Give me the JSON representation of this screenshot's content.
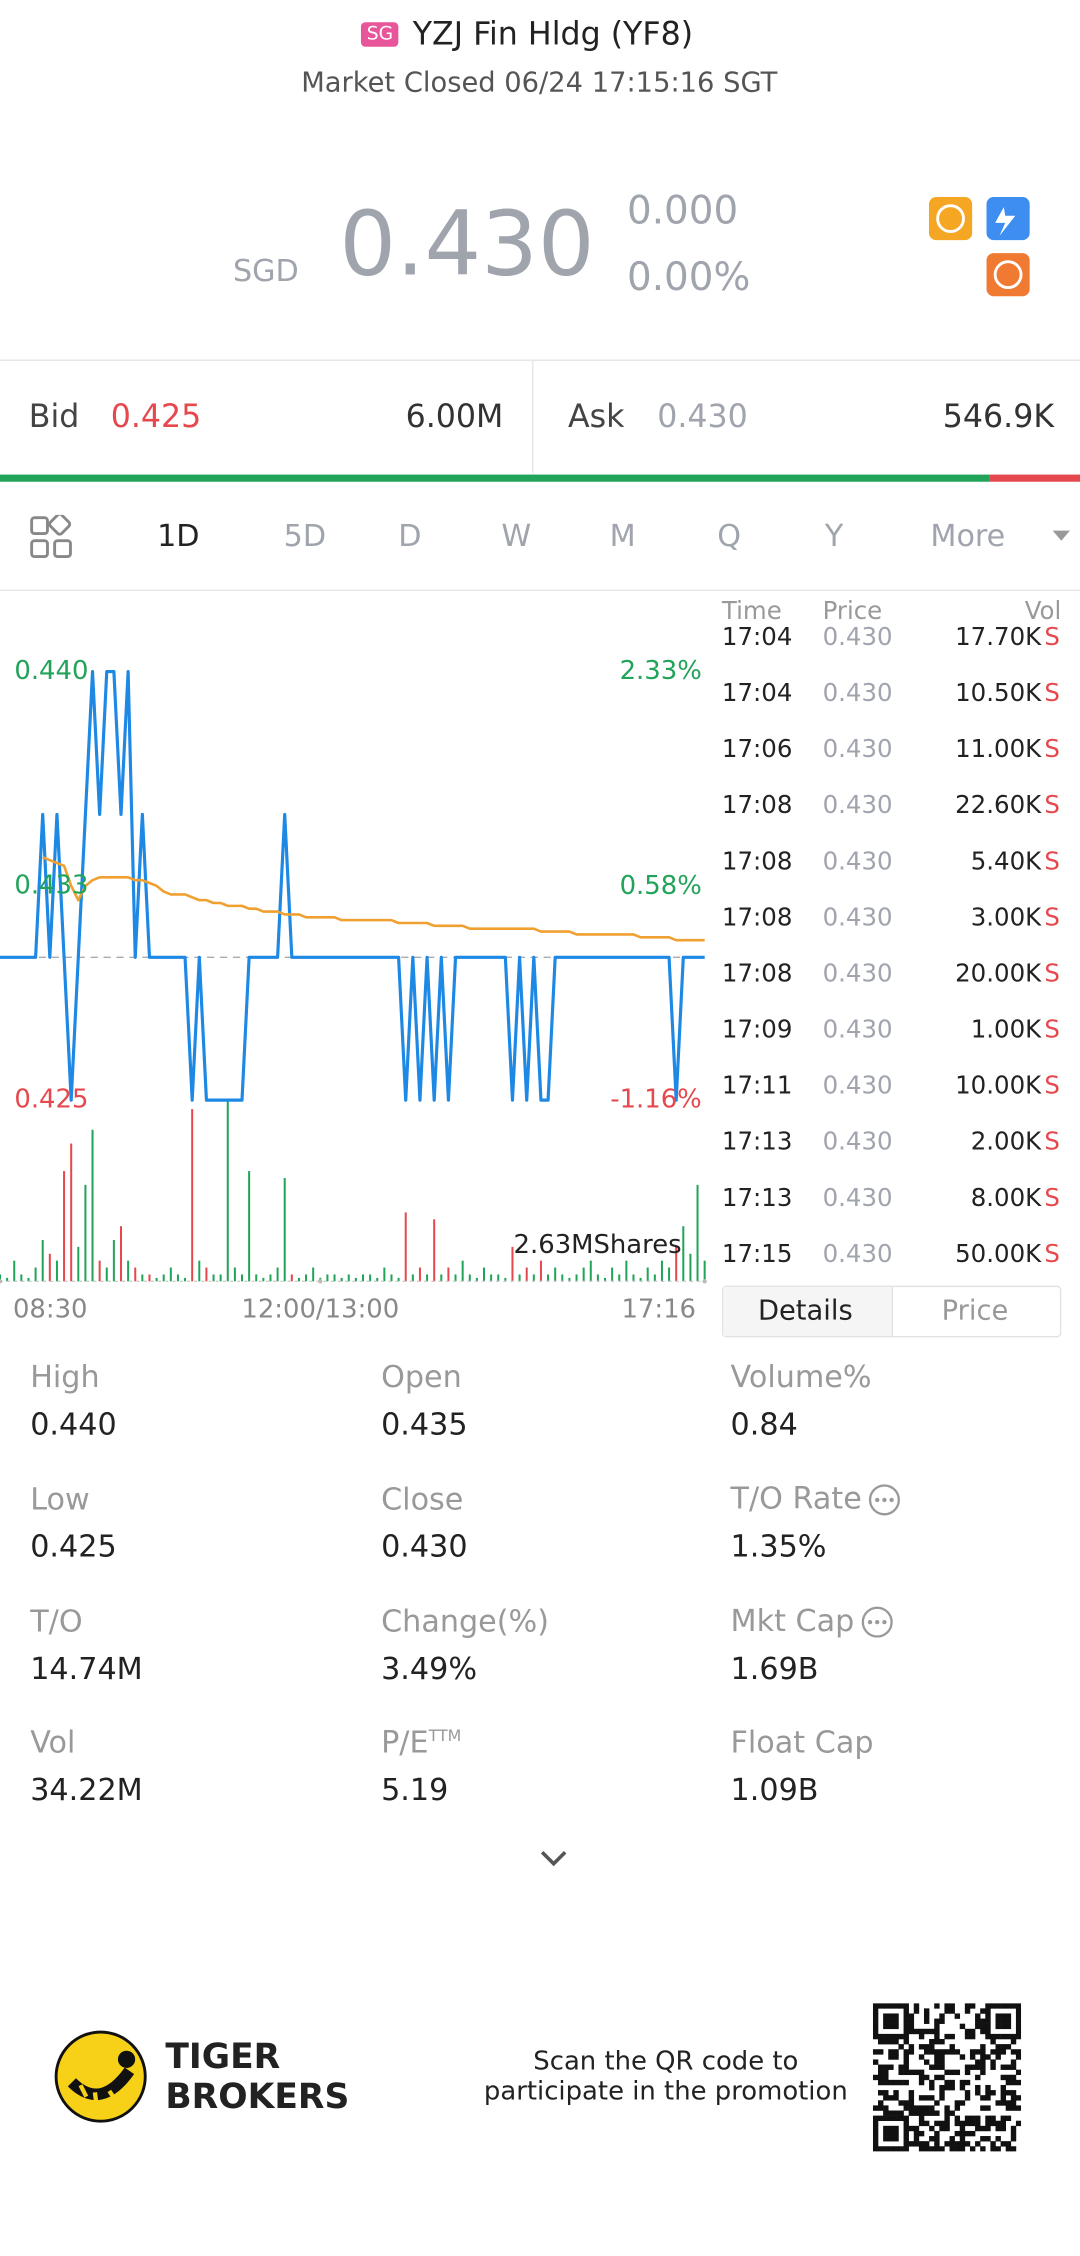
{
  "header": {
    "badge": "SG",
    "title": "YZJ Fin Hldg (YF8)",
    "status": "Market Closed 06/24 17:15:16 SGT"
  },
  "quote": {
    "currency": "SGD",
    "price": "0.430",
    "change": "0.000",
    "change_pct": "0.00%"
  },
  "bid_ask": {
    "bid_label": "Bid",
    "bid": "0.425",
    "bid_size": "6.00M",
    "ask_label": "Ask",
    "ask": "0.430",
    "ask_size": "546.9K"
  },
  "tabs": [
    "1D",
    "5D",
    "D",
    "W",
    "M",
    "Q",
    "Y",
    "More"
  ],
  "chart": {
    "type": "line",
    "ylim": [
      0.425,
      0.44
    ],
    "yticks": [
      {
        "value": 0.44,
        "label": "0.440"
      },
      {
        "value": 0.4325,
        "label": "0.433"
      },
      {
        "value": 0.425,
        "label": "0.425"
      }
    ],
    "y2lim": [
      -1.16,
      2.33
    ],
    "y2ticks": [
      {
        "value": 2.33,
        "label": "2.33%"
      },
      {
        "value": 0.58,
        "label": "0.58%"
      },
      {
        "value": -1.16,
        "label": "-1.16%"
      }
    ],
    "xlim": [
      0,
      99
    ],
    "xticks": [
      {
        "value": 0,
        "label": "08:30"
      },
      {
        "value": 45,
        "label": "12:00/13:00"
      },
      {
        "value": 99,
        "label": "17:16"
      }
    ],
    "reference": 0.43,
    "series": [
      {
        "color": "#1e88e5",
        "values": [
          0.43,
          0.43,
          0.43,
          0.43,
          0.43,
          0.43,
          0.435,
          0.43,
          0.435,
          0.43,
          0.425,
          0.43,
          0.435,
          0.44,
          0.435,
          0.44,
          0.44,
          0.435,
          0.44,
          0.43,
          0.435,
          0.43,
          0.43,
          0.43,
          0.43,
          0.43,
          0.43,
          0.425,
          0.43,
          0.425,
          0.425,
          0.425,
          0.425,
          0.425,
          0.425,
          0.43,
          0.43,
          0.43,
          0.43,
          0.43,
          0.435,
          0.43,
          0.43,
          0.43,
          0.43,
          0.43,
          0.43,
          0.43,
          0.43,
          0.43,
          0.43,
          0.43,
          0.43,
          0.43,
          0.43,
          0.43,
          0.43,
          0.425,
          0.43,
          0.425,
          0.43,
          0.425,
          0.43,
          0.425,
          0.43,
          0.43,
          0.43,
          0.43,
          0.43,
          0.43,
          0.43,
          0.43,
          0.425,
          0.43,
          0.425,
          0.43,
          0.425,
          0.425,
          0.43,
          0.43,
          0.43,
          0.43,
          0.43,
          0.43,
          0.43,
          0.43,
          0.43,
          0.43,
          0.43,
          0.43,
          0.43,
          0.43,
          0.43,
          0.43,
          0.43,
          0.425,
          0.43,
          0.43,
          0.43,
          0.43
        ]
      },
      {
        "color": "#f0a030",
        "values": [
          null,
          null,
          null,
          null,
          null,
          null,
          0.4335,
          0.4334,
          0.4333,
          0.4332,
          0.4325,
          0.432,
          0.4325,
          0.4327,
          0.4328,
          0.4328,
          0.4328,
          0.4328,
          0.4328,
          0.4327,
          0.4327,
          0.4326,
          0.4325,
          0.4323,
          0.4322,
          0.4322,
          0.4322,
          0.4321,
          0.432,
          0.432,
          0.4319,
          0.4319,
          0.4318,
          0.4318,
          0.4318,
          0.4317,
          0.4317,
          0.4316,
          0.4316,
          0.4316,
          0.4315,
          0.4315,
          0.4315,
          0.4314,
          0.4314,
          0.4314,
          0.4314,
          0.4314,
          0.4313,
          0.4313,
          0.4313,
          0.4313,
          0.4313,
          0.4313,
          0.4313,
          0.4313,
          0.4312,
          0.4312,
          0.4312,
          0.4312,
          0.4312,
          0.4311,
          0.4311,
          0.4311,
          0.4311,
          0.4311,
          0.431,
          0.431,
          0.431,
          0.431,
          0.431,
          0.431,
          0.431,
          0.431,
          0.431,
          0.431,
          0.4309,
          0.4309,
          0.4309,
          0.4309,
          0.4309,
          0.4308,
          0.4308,
          0.4308,
          0.4308,
          0.4308,
          0.4308,
          0.4308,
          0.4308,
          0.4308,
          0.4307,
          0.4307,
          0.4307,
          0.4307,
          0.4307,
          0.4306,
          0.4306,
          0.4306,
          0.4306,
          0.4306
        ]
      }
    ],
    "volume": {
      "ylim": [
        0,
        2.63
      ],
      "yticks": [
        {
          "value": 2.63,
          "label": "2.63MShares"
        }
      ],
      "up_color": "#22a35a",
      "down_color": "#e5484d",
      "values": [
        0.1,
        0.05,
        0.3,
        0.1,
        0.05,
        0.2,
        0.6,
        0.4,
        0.3,
        1.6,
        2.0,
        0.5,
        1.4,
        2.2,
        0.3,
        0.2,
        0.6,
        0.8,
        0.3,
        0.2,
        0.1,
        0.1,
        0.05,
        0.1,
        0.2,
        0.1,
        0.05,
        2.5,
        0.3,
        0.2,
        0.1,
        0.1,
        2.63,
        0.2,
        0.1,
        1.6,
        0.1,
        0.05,
        0.1,
        0.2,
        1.5,
        0.1,
        0.05,
        0.1,
        0.2,
        0.05,
        0.1,
        0.1,
        0.05,
        0.1,
        0.05,
        0.1,
        0.1,
        0.05,
        0.2,
        0.1,
        0.05,
        1.0,
        0.1,
        0.2,
        0.1,
        0.9,
        0.1,
        0.2,
        0.1,
        0.3,
        0.1,
        0.05,
        0.2,
        0.1,
        0.1,
        0.05,
        0.5,
        0.1,
        0.2,
        0.1,
        0.3,
        0.1,
        0.2,
        0.1,
        0.05,
        0.1,
        0.2,
        0.3,
        0.1,
        0.05,
        0.2,
        0.1,
        0.3,
        0.1,
        0.05,
        0.2,
        0.1,
        0.3,
        0.2,
        0.5,
        0.8,
        0.4,
        1.4,
        0.3
      ]
    }
  },
  "trades": {
    "columns": [
      "Time",
      "Price",
      "Vol"
    ],
    "rows": [
      [
        "17:04",
        "0.430",
        "17.70K",
        "S"
      ],
      [
        "17:04",
        "0.430",
        "10.50K",
        "S"
      ],
      [
        "17:06",
        "0.430",
        "11.00K",
        "S"
      ],
      [
        "17:08",
        "0.430",
        "22.60K",
        "S"
      ],
      [
        "17:08",
        "0.430",
        "5.40K",
        "S"
      ],
      [
        "17:08",
        "0.430",
        "3.00K",
        "S"
      ],
      [
        "17:08",
        "0.430",
        "20.00K",
        "S"
      ],
      [
        "17:09",
        "0.430",
        "1.00K",
        "S"
      ],
      [
        "17:11",
        "0.430",
        "10.00K",
        "S"
      ],
      [
        "17:13",
        "0.430",
        "2.00K",
        "S"
      ],
      [
        "17:13",
        "0.430",
        "8.00K",
        "S"
      ],
      [
        "17:15",
        "0.430",
        "50.00K",
        "S"
      ]
    ]
  },
  "detail_tabs": [
    "Details",
    "Price"
  ],
  "stats": [
    {
      "label": "High",
      "value": "0.440"
    },
    {
      "label": "Open",
      "value": "0.435"
    },
    {
      "label": "Volume%",
      "value": "0.84"
    },
    {
      "label": "Low",
      "value": "0.425"
    },
    {
      "label": "Close",
      "value": "0.430"
    },
    {
      "label": "T/O Rate",
      "value": "1.35%"
    },
    {
      "label": "T/O",
      "value": "14.74M"
    },
    {
      "label": "Change(%)",
      "value": "3.49%"
    },
    {
      "label": "Mkt Cap",
      "value": "1.69B"
    },
    {
      "label": "Vol",
      "value": "34.22M"
    },
    {
      "label": "P/E",
      "sup": "TTM",
      "value": "5.19"
    },
    {
      "label": "Float Cap",
      "value": "1.09B"
    }
  ],
  "footer": {
    "brand": [
      "TIGER",
      "BROKERS"
    ],
    "promo": [
      "Scan the QR code to",
      "participate in the promotion"
    ]
  }
}
